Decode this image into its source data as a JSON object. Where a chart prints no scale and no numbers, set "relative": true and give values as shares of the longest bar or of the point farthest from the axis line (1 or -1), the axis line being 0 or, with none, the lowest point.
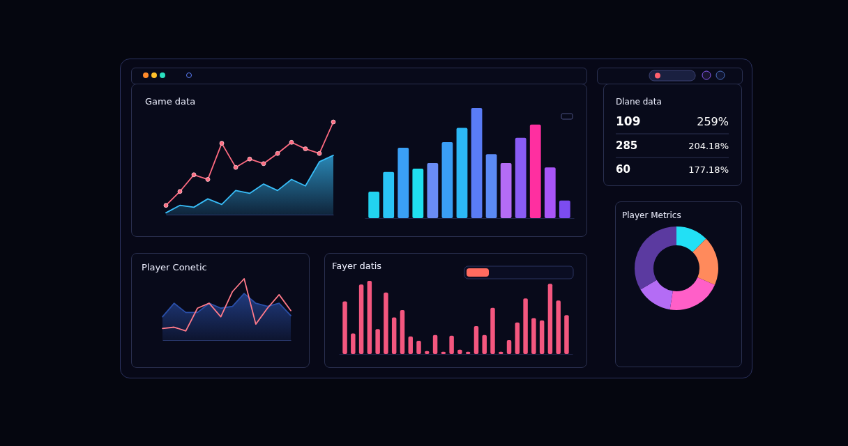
{
  "chart_data": [
    {
      "type": "line",
      "title": "Game data",
      "relative": true,
      "categories": [
        null,
        null,
        null,
        null,
        null,
        null,
        null,
        null,
        null,
        null,
        null,
        null,
        null
      ],
      "series": [
        {
          "type": "area",
          "color": "#38bdf8",
          "values": [
            0.02,
            0.1,
            0.08,
            0.17,
            0.11,
            0.26,
            0.23,
            0.33,
            0.26,
            0.38,
            0.31,
            0.57,
            0.64
          ]
        },
        {
          "type": "line",
          "color": "#ff6b81",
          "marker": "circle",
          "values": [
            0.1,
            0.25,
            0.43,
            0.38,
            0.77,
            0.51,
            0.6,
            0.55,
            0.66,
            0.78,
            0.71,
            0.66,
            1
          ]
        }
      ]
    },
    {
      "type": "bar",
      "relative": true,
      "categories": [
        null,
        null,
        null,
        null,
        null,
        null,
        null,
        null,
        null,
        null,
        null,
        null,
        null,
        null
      ],
      "values": [
        0.24,
        0.42,
        0.64,
        0.45,
        0.5,
        0.69,
        0.82,
        1,
        0.58,
        0.5,
        0.73,
        0.85,
        0.46,
        0.16
      ],
      "colors": [
        "#22d3f0",
        "#2ac4f5",
        "#3aa0f5",
        "#20e0f0",
        "#6a8cf5",
        "#3a9ef5",
        "#2cb8f5",
        "#5a7cf5",
        "#5b8af5",
        "#b46cf5",
        "#8a5cf5",
        "#ff2fa0",
        "#a855f7",
        "#7c4cf0"
      ]
    },
    {
      "type": "other",
      "title": "Dlane data",
      "annotations": [
        "109",
        "259%",
        "285",
        "204.18%",
        "60",
        "177.18%"
      ]
    },
    {
      "type": "line",
      "title": "Player Conetic",
      "relative": true,
      "categories": [
        null,
        null,
        null,
        null,
        null,
        null,
        null,
        null,
        null,
        null,
        null,
        null
      ],
      "series": [
        {
          "type": "area",
          "color": "#2a4fa8",
          "values": [
            0.38,
            0.6,
            0.45,
            0.45,
            0.6,
            0.52,
            0.55,
            0.76,
            0.6,
            0.55,
            0.6,
            0.4
          ]
        },
        {
          "type": "line",
          "color": "#ff7a8a",
          "values": [
            0.19,
            0.21,
            0.15,
            0.52,
            0.6,
            0.38,
            0.79,
            1,
            0.26,
            0.52,
            0.74,
            0.48
          ]
        }
      ]
    },
    {
      "type": "bar",
      "title": "Fayer datis",
      "relative": true,
      "color": "#f4577f",
      "categories": [
        null,
        null,
        null,
        null,
        null,
        null,
        null,
        null,
        null,
        null,
        null,
        null,
        null,
        null,
        null,
        null,
        null,
        null,
        null,
        null,
        null,
        null,
        null,
        null,
        null,
        null,
        null,
        null
      ],
      "values": [
        0.72,
        0.28,
        0.95,
        1,
        0.34,
        0.84,
        0.5,
        0.6,
        0.24,
        0.18,
        0.04,
        0.26,
        0.03,
        0.25,
        0.06,
        0.03,
        0.38,
        0.26,
        0.63,
        0.03,
        0.19,
        0.43,
        0.76,
        0.49,
        0.46,
        0.96,
        0.73,
        0.53
      ]
    },
    {
      "type": "donut",
      "title": "Player Metrics",
      "categories": [
        null,
        null,
        null,
        null,
        null
      ],
      "values": [
        12.5,
        19,
        21,
        14,
        33.5
      ],
      "colors": [
        "#22e0f5",
        "#ff8a5c",
        "#ff5fc8",
        "#b46cf5",
        "#5b3aa0"
      ]
    }
  ]
}
